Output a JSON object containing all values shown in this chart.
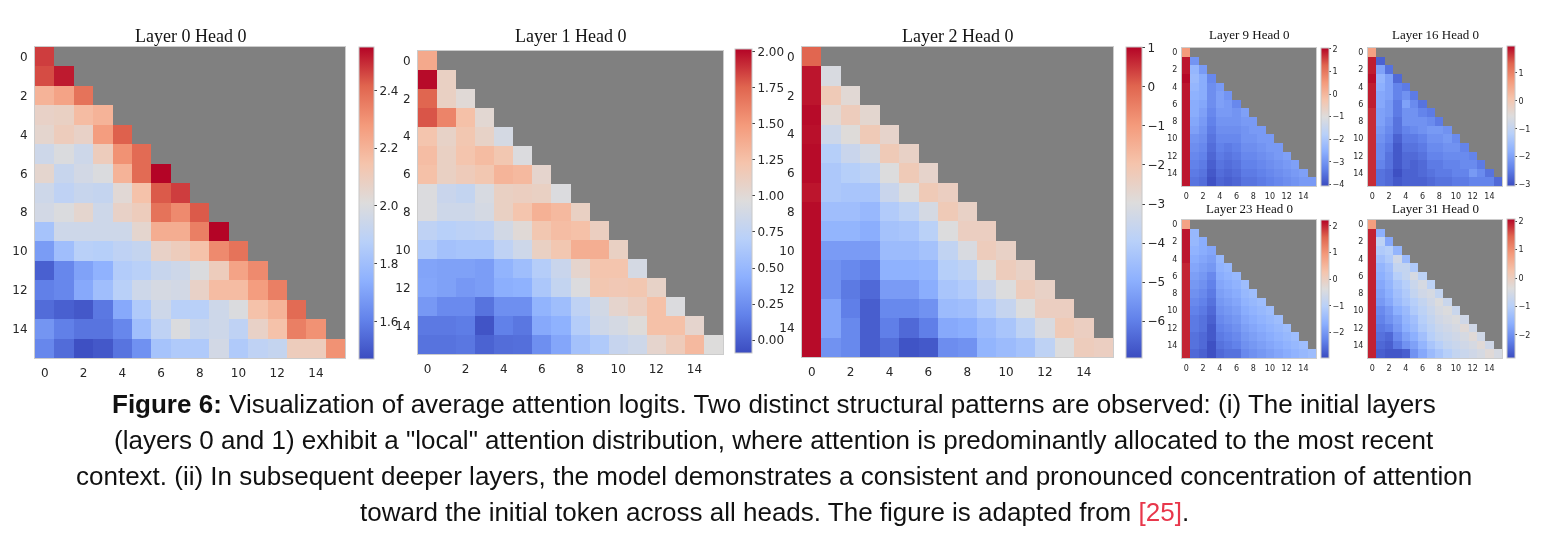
{
  "chart_data": [
    {
      "type": "heatmap",
      "title": "Layer 0 Head 0",
      "categories": [
        "0",
        null,
        "2",
        null,
        "4",
        null,
        "6",
        null,
        "8",
        null,
        "10",
        null,
        "12",
        null,
        "14",
        null
      ],
      "y_categories": [
        "0",
        null,
        "2",
        null,
        "4",
        null,
        "6",
        null,
        "8",
        null,
        "10",
        null,
        "12",
        null,
        "14",
        null
      ],
      "clim": [
        1.47,
        2.55
      ],
      "cticks": [
        1.6,
        1.8,
        {
          "value": 2,
          "label": "2.0"
        },
        2.2,
        2.4
      ],
      "cells": [
        [
          2.47,
          null,
          null,
          null,
          null,
          null,
          null,
          null,
          null,
          null,
          null,
          null,
          null,
          null,
          null,
          null
        ],
        [
          2.45,
          2.52,
          null,
          null,
          null,
          null,
          null,
          null,
          null,
          null,
          null,
          null,
          null,
          null,
          null,
          null
        ],
        [
          2.2,
          2.25,
          2.38,
          null,
          null,
          null,
          null,
          null,
          null,
          null,
          null,
          null,
          null,
          null,
          null,
          null
        ],
        [
          2.07,
          2.08,
          2.17,
          2.2,
          null,
          null,
          null,
          null,
          null,
          null,
          null,
          null,
          null,
          null,
          null,
          null
        ],
        [
          2.05,
          2.1,
          2.07,
          2.27,
          2.42,
          null,
          null,
          null,
          null,
          null,
          null,
          null,
          null,
          null,
          null,
          null
        ],
        [
          1.95,
          2.0,
          1.95,
          2.1,
          2.3,
          2.4,
          null,
          null,
          null,
          null,
          null,
          null,
          null,
          null,
          null,
          null
        ],
        [
          2.05,
          1.93,
          1.97,
          2.0,
          2.2,
          2.4,
          2.55,
          null,
          null,
          null,
          null,
          null,
          null,
          null,
          null,
          null
        ],
        [
          1.95,
          1.9,
          1.93,
          1.92,
          2.03,
          2.15,
          2.43,
          2.47,
          null,
          null,
          null,
          null,
          null,
          null,
          null,
          null
        ],
        [
          1.97,
          2.0,
          2.05,
          1.95,
          2.07,
          2.1,
          2.38,
          2.32,
          2.43,
          null,
          null,
          null,
          null,
          null,
          null,
          null
        ],
        [
          1.82,
          1.95,
          1.95,
          1.95,
          1.95,
          2.05,
          2.22,
          2.22,
          2.35,
          2.55,
          null,
          null,
          null,
          null,
          null,
          null
        ],
        [
          1.68,
          1.8,
          1.88,
          1.87,
          1.9,
          1.92,
          2.07,
          2.1,
          2.15,
          2.32,
          2.38,
          null,
          null,
          null,
          null,
          null
        ],
        [
          1.52,
          1.62,
          1.7,
          1.75,
          1.86,
          1.88,
          1.93,
          1.95,
          2.0,
          2.1,
          2.25,
          2.32,
          null,
          null,
          null,
          null
        ],
        [
          1.6,
          1.62,
          1.72,
          1.8,
          1.88,
          1.95,
          1.98,
          1.97,
          2.07,
          2.17,
          2.17,
          2.27,
          2.35,
          null,
          null,
          null
        ],
        [
          1.55,
          1.52,
          1.5,
          1.58,
          1.72,
          1.85,
          1.95,
          1.88,
          1.88,
          1.95,
          2.0,
          2.15,
          2.2,
          2.4,
          null,
          null
        ],
        [
          1.66,
          1.6,
          1.57,
          1.57,
          1.62,
          1.8,
          1.9,
          2.0,
          1.93,
          1.95,
          1.9,
          2.07,
          2.15,
          2.35,
          2.3,
          null
        ],
        [
          1.62,
          1.55,
          1.48,
          1.5,
          1.57,
          1.65,
          1.82,
          1.85,
          1.85,
          1.97,
          1.85,
          1.9,
          1.92,
          2.1,
          2.1,
          2.3
        ]
      ],
      "annotations": [
        "Figure 6: Visualization of average attention logits. Two distinct structural patterns are observed: (i) The initial layers (layers 0 and 1) exhibit a \"local\" attention distribution, where attention is predominantly allocated to the most recent context. (ii) In subsequent deeper layers, the model demonstrates a consistent and pronounced concentration of attention toward the initial token across all heads. The figure is adapted from [25]."
      ]
    },
    {
      "type": "heatmap",
      "title": "Layer 1 Head 0",
      "categories": [
        "0",
        null,
        "2",
        null,
        "4",
        null,
        "6",
        null,
        "8",
        null,
        "10",
        null,
        "12",
        null,
        "14",
        null
      ],
      "y_categories": [
        "0",
        null,
        "2",
        null,
        "4",
        null,
        "6",
        null,
        "8",
        null,
        "10",
        null,
        "12",
        null,
        "14",
        null
      ],
      "clim": [
        -0.09,
        2.02
      ],
      "cticks": [
        {
          "value": 0,
          "label": "0.00"
        },
        {
          "value": 0.25,
          "label": "0.25"
        },
        {
          "value": 0.5,
          "label": "0.50"
        },
        {
          "value": 0.75,
          "label": "0.75"
        },
        {
          "value": 1,
          "label": "1.00"
        },
        {
          "value": 1.25,
          "label": "1.25"
        },
        {
          "value": 1.5,
          "label": "1.50"
        },
        {
          "value": 1.75,
          "label": "1.75"
        },
        {
          "value": 2,
          "label": "2.00"
        }
      ],
      "cells": [
        [
          1.4,
          null,
          null,
          null,
          null,
          null,
          null,
          null,
          null,
          null,
          null,
          null,
          null,
          null,
          null,
          null
        ],
        [
          2.0,
          1.1,
          null,
          null,
          null,
          null,
          null,
          null,
          null,
          null,
          null,
          null,
          null,
          null,
          null,
          null
        ],
        [
          1.75,
          1.1,
          1.0,
          null,
          null,
          null,
          null,
          null,
          null,
          null,
          null,
          null,
          null,
          null,
          null,
          null
        ],
        [
          1.8,
          1.6,
          1.25,
          1.02,
          null,
          null,
          null,
          null,
          null,
          null,
          null,
          null,
          null,
          null,
          null,
          null
        ],
        [
          1.22,
          1.08,
          1.2,
          1.08,
          0.9,
          null,
          null,
          null,
          null,
          null,
          null,
          null,
          null,
          null,
          null,
          null
        ],
        [
          1.27,
          1.1,
          1.22,
          1.28,
          1.2,
          0.95,
          null,
          null,
          null,
          null,
          null,
          null,
          null,
          null,
          null,
          null
        ],
        [
          1.25,
          1.1,
          1.15,
          1.2,
          1.33,
          1.3,
          1.05,
          null,
          null,
          null,
          null,
          null,
          null,
          null,
          null,
          null
        ],
        [
          0.95,
          0.82,
          0.78,
          0.92,
          1.1,
          1.12,
          1.1,
          0.95,
          null,
          null,
          null,
          null,
          null,
          null,
          null,
          null
        ],
        [
          0.95,
          0.85,
          0.85,
          0.9,
          1.1,
          1.22,
          1.35,
          1.3,
          1.1,
          null,
          null,
          null,
          null,
          null,
          null,
          null
        ],
        [
          0.75,
          0.7,
          0.73,
          0.75,
          0.88,
          1.0,
          1.2,
          1.27,
          1.25,
          1.12,
          null,
          null,
          null,
          null,
          null,
          null
        ],
        [
          0.65,
          0.58,
          0.6,
          0.6,
          0.75,
          0.85,
          1.1,
          1.2,
          1.37,
          1.37,
          1.1,
          null,
          null,
          null,
          null,
          null
        ],
        [
          0.37,
          0.35,
          0.35,
          0.33,
          0.47,
          0.55,
          0.68,
          0.82,
          1.05,
          1.22,
          1.22,
          0.9,
          null,
          null,
          null,
          null
        ],
        [
          0.38,
          0.35,
          0.3,
          0.33,
          0.43,
          0.45,
          0.63,
          0.78,
          0.95,
          1.2,
          1.18,
          1.2,
          1.08,
          null,
          null,
          null
        ],
        [
          0.3,
          0.22,
          0.22,
          0.1,
          0.25,
          0.25,
          0.47,
          0.55,
          0.75,
          0.88,
          1.05,
          1.12,
          1.25,
          0.95,
          null,
          null
        ],
        [
          0.13,
          0.13,
          0.15,
          -0.05,
          0.17,
          0.12,
          0.4,
          0.45,
          0.68,
          0.85,
          0.9,
          0.98,
          1.25,
          1.25,
          1.05,
          null
        ],
        [
          0.1,
          0.1,
          0.12,
          0.02,
          0.07,
          0.08,
          0.25,
          0.38,
          0.58,
          0.65,
          0.8,
          0.85,
          1.05,
          1.15,
          1.3,
          0.97
        ]
      ]
    },
    {
      "type": "heatmap",
      "title": "Layer 2 Head 0",
      "categories": [
        "0",
        null,
        "2",
        null,
        "4",
        null,
        "6",
        null,
        "8",
        null,
        "10",
        null,
        "12",
        null,
        "14",
        null
      ],
      "y_categories": [
        "0",
        null,
        "2",
        null,
        "4",
        null,
        "6",
        null,
        "8",
        null,
        "10",
        null,
        "12",
        null,
        "14",
        null
      ],
      "clim": [
        -6.94,
        1.02
      ],
      "cticks": [
        {
          "value": -6,
          "label": "−6"
        },
        {
          "value": -5,
          "label": "−5"
        },
        {
          "value": -4,
          "label": "−4"
        },
        {
          "value": -3,
          "label": "−3"
        },
        {
          "value": -2,
          "label": "−2"
        },
        {
          "value": -1,
          "label": "−1"
        },
        0,
        1
      ],
      "cells": [
        [
          0.0,
          null,
          null,
          null,
          null,
          null,
          null,
          null,
          null,
          null,
          null,
          null,
          null,
          null,
          null,
          null
        ],
        [
          0.85,
          -3.1,
          null,
          null,
          null,
          null,
          null,
          null,
          null,
          null,
          null,
          null,
          null,
          null,
          null,
          null
        ],
        [
          0.85,
          -2.2,
          -2.8,
          null,
          null,
          null,
          null,
          null,
          null,
          null,
          null,
          null,
          null,
          null,
          null,
          null
        ],
        [
          0.95,
          -2.8,
          -2.3,
          -2.7,
          null,
          null,
          null,
          null,
          null,
          null,
          null,
          null,
          null,
          null,
          null,
          null
        ],
        [
          0.9,
          -3.4,
          -2.9,
          -2.2,
          -2.6,
          null,
          null,
          null,
          null,
          null,
          null,
          null,
          null,
          null,
          null,
          null
        ],
        [
          0.95,
          -4.0,
          -3.5,
          -3.2,
          -2.2,
          -2.5,
          null,
          null,
          null,
          null,
          null,
          null,
          null,
          null,
          null,
          null
        ],
        [
          0.95,
          -4.2,
          -4.0,
          -3.8,
          -3.0,
          -2.2,
          -2.6,
          null,
          null,
          null,
          null,
          null,
          null,
          null,
          null,
          null
        ],
        [
          0.85,
          -4.2,
          -4.3,
          -4.3,
          -3.5,
          -3.0,
          -2.2,
          -2.4,
          null,
          null,
          null,
          null,
          null,
          null,
          null,
          null
        ],
        [
          0.95,
          -4.5,
          -4.5,
          -4.7,
          -4.1,
          -3.8,
          -3.2,
          -2.2,
          -2.5,
          null,
          null,
          null,
          null,
          null,
          null,
          null
        ],
        [
          0.95,
          -4.8,
          -4.8,
          -5.0,
          -4.4,
          -4.3,
          -3.9,
          -3.0,
          -2.4,
          -2.4,
          null,
          null,
          null,
          null,
          null,
          null
        ],
        [
          0.95,
          -5.4,
          -5.4,
          -5.4,
          -4.6,
          -4.6,
          -4.4,
          -3.7,
          -3.1,
          -2.3,
          -2.5,
          null,
          null,
          null,
          null,
          null
        ],
        [
          0.95,
          -5.6,
          -5.8,
          -6.0,
          -4.9,
          -4.9,
          -4.8,
          -4.0,
          -3.8,
          -3.0,
          -2.3,
          -2.5,
          null,
          null,
          null,
          null
        ],
        [
          0.95,
          -5.6,
          -6.1,
          -6.4,
          -5.4,
          -5.4,
          -5.0,
          -4.3,
          -4.1,
          -3.5,
          -3.0,
          -2.3,
          -2.5,
          null,
          null,
          null
        ],
        [
          0.95,
          -5.2,
          -6.0,
          -6.6,
          -5.8,
          -5.8,
          -5.6,
          -4.6,
          -4.5,
          -4.1,
          -3.6,
          -3.0,
          -2.4,
          -2.4,
          null,
          null
        ],
        [
          0.95,
          -5.2,
          -5.8,
          -6.6,
          -6.0,
          -6.4,
          -6.0,
          -5.1,
          -5.0,
          -4.6,
          -4.3,
          -3.8,
          -3.1,
          -2.2,
          -2.4,
          null
        ],
        [
          0.95,
          -5.6,
          -5.8,
          -6.6,
          -6.3,
          -6.8,
          -6.7,
          -5.7,
          -5.6,
          -4.8,
          -4.6,
          -4.4,
          -3.8,
          -3.0,
          -2.3,
          -2.4
        ]
      ]
    },
    {
      "type": "heatmap",
      "title": "Layer 9 Head 0",
      "categories": [
        "0",
        null,
        "2",
        null,
        "4",
        null,
        "6",
        null,
        "8",
        null,
        "10",
        null,
        "12",
        null,
        "14",
        null
      ],
      "y_categories": [
        "0",
        null,
        "2",
        null,
        "4",
        null,
        "6",
        null,
        "8",
        null,
        "10",
        null,
        "12",
        null,
        "14",
        null
      ],
      "clim": [
        -4.07,
        2.04
      ],
      "cticks": [
        {
          "value": -4,
          "label": "−4"
        },
        {
          "value": -3,
          "label": "−3"
        },
        {
          "value": -2,
          "label": "−2"
        },
        {
          "value": -1,
          "label": "−1"
        },
        0,
        1,
        2
      ],
      "cells": [
        [
          0.5,
          null,
          null,
          null,
          null,
          null,
          null,
          null,
          null,
          null,
          null,
          null,
          null,
          null,
          null,
          null
        ],
        [
          1.9,
          -3.0,
          null,
          null,
          null,
          null,
          null,
          null,
          null,
          null,
          null,
          null,
          null,
          null,
          null,
          null
        ],
        [
          1.9,
          -2.4,
          -2.9,
          null,
          null,
          null,
          null,
          null,
          null,
          null,
          null,
          null,
          null,
          null,
          null,
          null
        ],
        [
          2.0,
          -2.3,
          -2.6,
          -3.2,
          null,
          null,
          null,
          null,
          null,
          null,
          null,
          null,
          null,
          null,
          null,
          null
        ],
        [
          1.9,
          -2.4,
          -2.6,
          -3.1,
          -2.9,
          null,
          null,
          null,
          null,
          null,
          null,
          null,
          null,
          null,
          null,
          null
        ],
        [
          1.9,
          -2.5,
          -2.6,
          -3.1,
          -2.8,
          -3.0,
          null,
          null,
          null,
          null,
          null,
          null,
          null,
          null,
          null,
          null
        ],
        [
          1.9,
          -2.6,
          -2.7,
          -3.1,
          -2.8,
          -2.9,
          -3.2,
          null,
          null,
          null,
          null,
          null,
          null,
          null,
          null,
          null
        ],
        [
          1.9,
          -2.6,
          -2.8,
          -3.2,
          -2.9,
          -2.9,
          -3.0,
          -2.8,
          null,
          null,
          null,
          null,
          null,
          null,
          null,
          null
        ],
        [
          1.9,
          -2.7,
          -2.9,
          -3.3,
          -3.0,
          -3.0,
          -3.0,
          -2.9,
          -2.9,
          null,
          null,
          null,
          null,
          null,
          null,
          null
        ],
        [
          1.9,
          -2.8,
          -3.0,
          -3.4,
          -3.1,
          -3.1,
          -3.1,
          -3.0,
          -2.9,
          -2.9,
          null,
          null,
          null,
          null,
          null,
          null
        ],
        [
          1.9,
          -3.0,
          -3.1,
          -3.5,
          -3.2,
          -3.2,
          -3.2,
          -3.0,
          -3.0,
          -2.9,
          -2.9,
          null,
          null,
          null,
          null,
          null
        ],
        [
          1.9,
          -3.1,
          -3.2,
          -3.6,
          -3.3,
          -3.4,
          -3.3,
          -3.1,
          -3.1,
          -3.0,
          -2.9,
          -2.9,
          null,
          null,
          null,
          null
        ],
        [
          1.9,
          -3.2,
          -3.3,
          -3.7,
          -3.4,
          -3.5,
          -3.4,
          -3.2,
          -3.2,
          -3.1,
          -3.0,
          -2.9,
          -2.8,
          null,
          null,
          null
        ],
        [
          1.9,
          -3.3,
          -3.4,
          -3.8,
          -3.5,
          -3.6,
          -3.5,
          -3.3,
          -3.3,
          -3.2,
          -3.1,
          -3.0,
          -2.9,
          -2.8,
          null,
          null
        ],
        [
          1.9,
          -3.4,
          -3.5,
          -3.9,
          -3.6,
          -3.7,
          -3.6,
          -3.4,
          -3.4,
          -3.3,
          -3.2,
          -3.1,
          -3.0,
          -2.9,
          -2.8,
          null
        ],
        [
          1.9,
          -3.5,
          -3.6,
          -4.0,
          -3.7,
          -3.8,
          -3.7,
          -3.5,
          -3.5,
          -3.4,
          -3.3,
          -3.2,
          -3.1,
          -3.0,
          -2.9,
          -2.9
        ]
      ]
    },
    {
      "type": "heatmap",
      "title": "Layer 16 Head 0",
      "categories": [
        "0",
        null,
        "2",
        null,
        "4",
        null,
        "6",
        null,
        "8",
        null,
        "10",
        null,
        "12",
        null,
        "14",
        null
      ],
      "y_categories": [
        "0",
        null,
        "2",
        null,
        "4",
        null,
        "6",
        null,
        "8",
        null,
        "10",
        null,
        "12",
        null,
        "14",
        null
      ],
      "clim": [
        -3.05,
        1.96
      ],
      "cticks": [
        {
          "value": -3,
          "label": "−3"
        },
        {
          "value": -2,
          "label": "−2"
        },
        {
          "value": -1,
          "label": "−1"
        },
        0,
        1
      ],
      "cells": [
        [
          0.6,
          null,
          null,
          null,
          null,
          null,
          null,
          null,
          null,
          null,
          null,
          null,
          null,
          null,
          null,
          null
        ],
        [
          1.8,
          -2.8,
          null,
          null,
          null,
          null,
          null,
          null,
          null,
          null,
          null,
          null,
          null,
          null,
          null,
          null
        ],
        [
          1.8,
          -2.0,
          -2.6,
          null,
          null,
          null,
          null,
          null,
          null,
          null,
          null,
          null,
          null,
          null,
          null,
          null
        ],
        [
          1.9,
          -1.7,
          -2.0,
          -2.7,
          null,
          null,
          null,
          null,
          null,
          null,
          null,
          null,
          null,
          null,
          null,
          null
        ],
        [
          1.8,
          -1.8,
          -2.0,
          -2.4,
          -2.5,
          null,
          null,
          null,
          null,
          null,
          null,
          null,
          null,
          null,
          null,
          null
        ],
        [
          1.8,
          -1.9,
          -2.0,
          -2.4,
          -2.2,
          -2.5,
          null,
          null,
          null,
          null,
          null,
          null,
          null,
          null,
          null,
          null
        ],
        [
          1.8,
          -1.9,
          -2.1,
          -2.5,
          -2.0,
          -2.3,
          -2.6,
          null,
          null,
          null,
          null,
          null,
          null,
          null,
          null,
          null
        ],
        [
          1.7,
          -2.0,
          -2.1,
          -2.5,
          -2.2,
          -2.2,
          -2.4,
          -2.5,
          null,
          null,
          null,
          null,
          null,
          null,
          null,
          null
        ],
        [
          1.7,
          -2.0,
          -2.2,
          -2.6,
          -2.2,
          -2.2,
          -2.2,
          -2.3,
          -2.5,
          null,
          null,
          null,
          null,
          null,
          null,
          null
        ],
        [
          1.7,
          -2.1,
          -2.3,
          -2.6,
          -2.4,
          -2.3,
          -2.2,
          -2.1,
          -2.1,
          -2.2,
          null,
          null,
          null,
          null,
          null,
          null
        ],
        [
          1.7,
          -2.2,
          -2.4,
          -2.8,
          -2.5,
          -2.5,
          -2.4,
          -2.2,
          -2.2,
          -2.1,
          -2.3,
          null,
          null,
          null,
          null,
          null
        ],
        [
          1.7,
          -2.3,
          -2.5,
          -2.9,
          -2.6,
          -2.6,
          -2.5,
          -2.3,
          -2.3,
          -2.2,
          -2.2,
          -2.4,
          null,
          null,
          null,
          null
        ],
        [
          1.7,
          -2.3,
          -2.6,
          -2.9,
          -2.7,
          -2.7,
          -2.6,
          -2.4,
          -2.4,
          -2.3,
          -2.3,
          -2.3,
          -2.4,
          null,
          null,
          null
        ],
        [
          1.7,
          -2.4,
          -2.6,
          -2.9,
          -2.7,
          -2.8,
          -2.7,
          -2.5,
          -2.5,
          -2.4,
          -2.4,
          -2.3,
          -2.3,
          -2.5,
          null,
          null
        ],
        [
          1.7,
          -2.6,
          -2.7,
          -3.0,
          -2.8,
          -2.8,
          -2.7,
          -2.6,
          -2.5,
          -2.5,
          -2.4,
          -2.4,
          -2.1,
          -2.3,
          -2.6,
          null
        ],
        [
          1.7,
          -2.6,
          -2.7,
          -2.9,
          -2.8,
          -2.8,
          -2.8,
          -2.7,
          -2.6,
          -2.6,
          -2.5,
          -2.5,
          -2.4,
          -2.4,
          -2.4,
          -2.7
        ]
      ]
    },
    {
      "type": "heatmap",
      "title": "Layer 23 Head 0",
      "categories": [
        "0",
        null,
        "2",
        null,
        "4",
        null,
        "6",
        null,
        "8",
        null,
        "10",
        null,
        "12",
        null,
        "14",
        null
      ],
      "y_categories": [
        "0",
        null,
        "2",
        null,
        "4",
        null,
        "6",
        null,
        "8",
        null,
        "10",
        null,
        "12",
        null,
        "14",
        null
      ],
      "clim": [
        -2.95,
        2.22
      ],
      "cticks": [
        {
          "value": -2,
          "label": "−2"
        },
        {
          "value": -1,
          "label": "−1"
        },
        0,
        1,
        2
      ],
      "cells": [
        [
          0.8,
          null,
          null,
          null,
          null,
          null,
          null,
          null,
          null,
          null,
          null,
          null,
          null,
          null,
          null,
          null
        ],
        [
          2.1,
          -1.5,
          null,
          null,
          null,
          null,
          null,
          null,
          null,
          null,
          null,
          null,
          null,
          null,
          null,
          null
        ],
        [
          2.1,
          -1.5,
          -1.7,
          null,
          null,
          null,
          null,
          null,
          null,
          null,
          null,
          null,
          null,
          null,
          null,
          null
        ],
        [
          2.1,
          -1.6,
          -1.7,
          -1.8,
          null,
          null,
          null,
          null,
          null,
          null,
          null,
          null,
          null,
          null,
          null,
          null
        ],
        [
          2.1,
          -1.7,
          -1.8,
          -1.9,
          -1.5,
          null,
          null,
          null,
          null,
          null,
          null,
          null,
          null,
          null,
          null,
          null
        ],
        [
          2.0,
          -1.8,
          -1.9,
          -2.0,
          -1.6,
          -1.5,
          null,
          null,
          null,
          null,
          null,
          null,
          null,
          null,
          null,
          null
        ],
        [
          2.0,
          -1.9,
          -2.0,
          -2.2,
          -1.7,
          -1.6,
          -1.5,
          null,
          null,
          null,
          null,
          null,
          null,
          null,
          null,
          null
        ],
        [
          2.0,
          -2.0,
          -2.1,
          -2.3,
          -1.8,
          -1.7,
          -1.6,
          -1.4,
          null,
          null,
          null,
          null,
          null,
          null,
          null,
          null
        ],
        [
          2.0,
          -2.1,
          -2.2,
          -2.4,
          -1.9,
          -1.8,
          -1.7,
          -1.5,
          -1.4,
          null,
          null,
          null,
          null,
          null,
          null,
          null
        ],
        [
          2.0,
          -2.2,
          -2.3,
          -2.5,
          -2.0,
          -1.9,
          -1.8,
          -1.6,
          -1.5,
          -1.4,
          null,
          null,
          null,
          null,
          null,
          null
        ],
        [
          2.0,
          -2.3,
          -2.4,
          -2.6,
          -2.1,
          -2.0,
          -1.9,
          -1.7,
          -1.6,
          -1.5,
          -1.4,
          null,
          null,
          null,
          null,
          null
        ],
        [
          2.0,
          -2.4,
          -2.5,
          -2.7,
          -2.2,
          -2.1,
          -2.0,
          -1.8,
          -1.7,
          -1.6,
          -1.5,
          -1.4,
          null,
          null,
          null,
          null
        ],
        [
          2.0,
          -2.4,
          -2.5,
          -2.8,
          -2.3,
          -2.2,
          -2.1,
          -1.9,
          -1.8,
          -1.7,
          -1.6,
          -1.5,
          -1.4,
          null,
          null,
          null
        ],
        [
          2.0,
          -2.5,
          -2.6,
          -2.8,
          -2.4,
          -2.3,
          -2.2,
          -2.0,
          -1.9,
          -1.8,
          -1.7,
          -1.6,
          -1.5,
          -1.4,
          null,
          null
        ],
        [
          2.0,
          -2.5,
          -2.6,
          -2.9,
          -2.5,
          -2.4,
          -2.3,
          -2.1,
          -2.0,
          -1.9,
          -1.8,
          -1.7,
          -1.6,
          -1.5,
          -1.4,
          null
        ],
        [
          2.0,
          -2.6,
          -2.7,
          -2.9,
          -2.6,
          -2.5,
          -2.5,
          -2.2,
          -2.1,
          -2.0,
          -1.9,
          -1.8,
          -1.7,
          -1.6,
          -1.5,
          -1.4
        ]
      ]
    },
    {
      "type": "heatmap",
      "title": "Layer 31 Head 0",
      "categories": [
        "0",
        null,
        "2",
        null,
        "4",
        null,
        "6",
        null,
        "8",
        null,
        "10",
        null,
        "12",
        null,
        "14",
        null
      ],
      "y_categories": [
        "0",
        null,
        "2",
        null,
        "4",
        null,
        "6",
        null,
        "8",
        null,
        "10",
        null,
        "12",
        null,
        "14",
        null
      ],
      "clim": [
        -2.82,
        2.08
      ],
      "cticks": [
        {
          "value": -2,
          "label": "−2"
        },
        {
          "value": -1,
          "label": "−1"
        },
        0,
        1,
        2
      ],
      "cells": [
        [
          0.8,
          null,
          null,
          null,
          null,
          null,
          null,
          null,
          null,
          null,
          null,
          null,
          null,
          null,
          null,
          null
        ],
        [
          1.9,
          -1.6,
          null,
          null,
          null,
          null,
          null,
          null,
          null,
          null,
          null,
          null,
          null,
          null,
          null,
          null
        ],
        [
          1.9,
          -0.9,
          -1.7,
          null,
          null,
          null,
          null,
          null,
          null,
          null,
          null,
          null,
          null,
          null,
          null,
          null
        ],
        [
          1.9,
          -1.1,
          -1.0,
          -1.5,
          null,
          null,
          null,
          null,
          null,
          null,
          null,
          null,
          null,
          null,
          null,
          null
        ],
        [
          1.9,
          -1.3,
          -1.1,
          -0.6,
          -1.4,
          null,
          null,
          null,
          null,
          null,
          null,
          null,
          null,
          null,
          null,
          null
        ],
        [
          1.9,
          -1.5,
          -1.3,
          -0.8,
          -0.8,
          -1.1,
          null,
          null,
          null,
          null,
          null,
          null,
          null,
          null,
          null,
          null
        ],
        [
          1.9,
          -1.6,
          -1.4,
          -1.0,
          -0.8,
          -0.5,
          -0.9,
          null,
          null,
          null,
          null,
          null,
          null,
          null,
          null,
          null
        ],
        [
          1.9,
          -1.7,
          -1.5,
          -1.2,
          -1.0,
          -0.7,
          -0.5,
          -0.9,
          null,
          null,
          null,
          null,
          null,
          null,
          null,
          null
        ],
        [
          1.9,
          -1.8,
          -1.6,
          -1.3,
          -1.1,
          -0.8,
          -0.6,
          -0.5,
          -0.8,
          null,
          null,
          null,
          null,
          null,
          null,
          null
        ],
        [
          1.9,
          -1.9,
          -1.7,
          -1.4,
          -1.2,
          -1.0,
          -0.8,
          -0.6,
          -0.4,
          -0.7,
          null,
          null,
          null,
          null,
          null,
          null
        ],
        [
          1.9,
          -2.1,
          -1.9,
          -1.6,
          -1.4,
          -1.1,
          -0.9,
          -0.7,
          -0.5,
          -0.4,
          -0.7,
          null,
          null,
          null,
          null,
          null
        ],
        [
          1.9,
          -2.2,
          -2.0,
          -1.8,
          -1.5,
          -1.3,
          -1.0,
          -0.8,
          -0.6,
          -0.5,
          -0.4,
          -0.6,
          null,
          null,
          null,
          null
        ],
        [
          1.9,
          -2.3,
          -2.2,
          -1.9,
          -1.6,
          -1.4,
          -1.1,
          -0.9,
          -0.7,
          -0.6,
          -0.5,
          -0.3,
          -0.6,
          null,
          null,
          null
        ],
        [
          1.9,
          -2.4,
          -2.5,
          -2.1,
          -1.8,
          -1.6,
          -1.3,
          -1.0,
          -0.8,
          -0.7,
          -0.6,
          -0.5,
          -0.3,
          -0.6,
          null,
          null
        ],
        [
          1.9,
          -2.5,
          -2.6,
          -2.3,
          -2.0,
          -1.8,
          -1.5,
          -1.2,
          -1.0,
          -0.8,
          -0.7,
          -0.6,
          -0.5,
          -0.3,
          -0.6,
          null
        ],
        [
          1.9,
          -2.6,
          -2.7,
          -2.7,
          -2.6,
          -2.0,
          -1.7,
          -1.4,
          -1.2,
          -1.0,
          -0.8,
          -0.7,
          -0.6,
          -0.5,
          -0.3,
          -0.5
        ]
      ]
    }
  ]
}
